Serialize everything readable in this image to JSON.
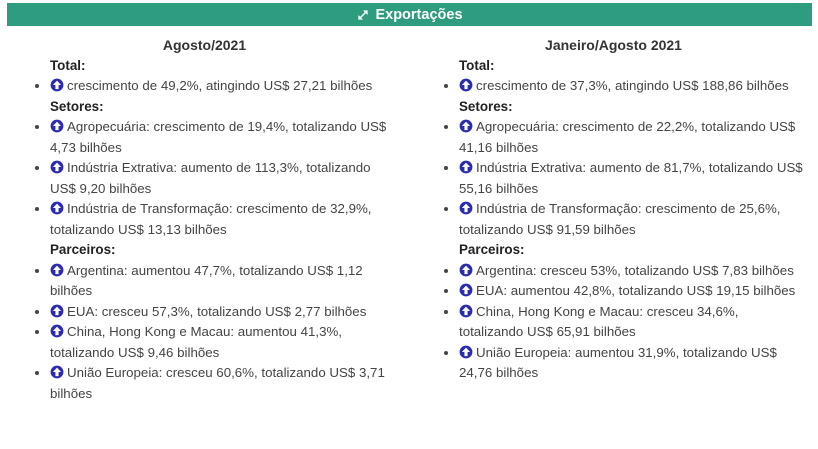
{
  "header": {
    "title": "Exportações"
  },
  "icons": {
    "header": "expand-diagonal-arrows-icon",
    "list_bullet": "arrow-circle-up-icon"
  },
  "colors": {
    "header_bg": "#2E9C7E",
    "header_text": "#FFFFFF",
    "arrow_icon_blue": "#2B2BB2",
    "body_text": "#444444",
    "heading_text": "#222222"
  },
  "columns": [
    {
      "title": "Agosto/2021",
      "sections": [
        {
          "label": "Total:",
          "items": [
            "crescimento de 49,2%, atingindo US$ 27,21 bilhões"
          ]
        },
        {
          "label": "Setores:",
          "items": [
            "Agropecuária: crescimento de 19,4%, totalizando US$ 4,73 bilhões",
            "Indústria Extrativa: aumento de 113,3%, totalizando US$ 9,20 bilhões",
            "Indústria de Transformação: crescimento de 32,9%, totalizando US$ 13,13 bilhões"
          ]
        },
        {
          "label": "Parceiros:",
          "items": [
            "Argentina: aumentou 47,7%, totalizando US$ 1,12 bilhões",
            "EUA: cresceu 57,3%, totalizando US$ 2,77 bilhões",
            "China, Hong Kong e Macau: aumentou 41,3%, totalizando US$ 9,46 bilhões",
            "União Europeia: cresceu 60,6%, totalizando US$ 3,71 bilhões"
          ]
        }
      ]
    },
    {
      "title": "Janeiro/Agosto 2021",
      "sections": [
        {
          "label": "Total:",
          "items": [
            "crescimento de 37,3%, atingindo US$ 188,86 bilhões"
          ]
        },
        {
          "label": "Setores:",
          "items": [
            "Agropecuária: crescimento de 22,2%, totalizando US$ 41,16 bilhões",
            "Indústria Extrativa: aumento de 81,7%, totalizando US$ 55,16 bilhões",
            "Indústria de Transformação: crescimento de 25,6%, totalizando US$ 91,59 bilhões"
          ]
        },
        {
          "label": "Parceiros:",
          "items": [
            "Argentina: cresceu 53%, totalizando US$ 7,83 bilhões",
            "EUA: aumentou 42,8%, totalizando US$ 19,15 bilhões",
            "China, Hong Kong e Macau: cresceu 34,6%, totalizando US$ 65,91 bilhões",
            "União Europeia: aumentou 31,9%, totalizando US$ 24,76 bilhões"
          ]
        }
      ]
    }
  ]
}
